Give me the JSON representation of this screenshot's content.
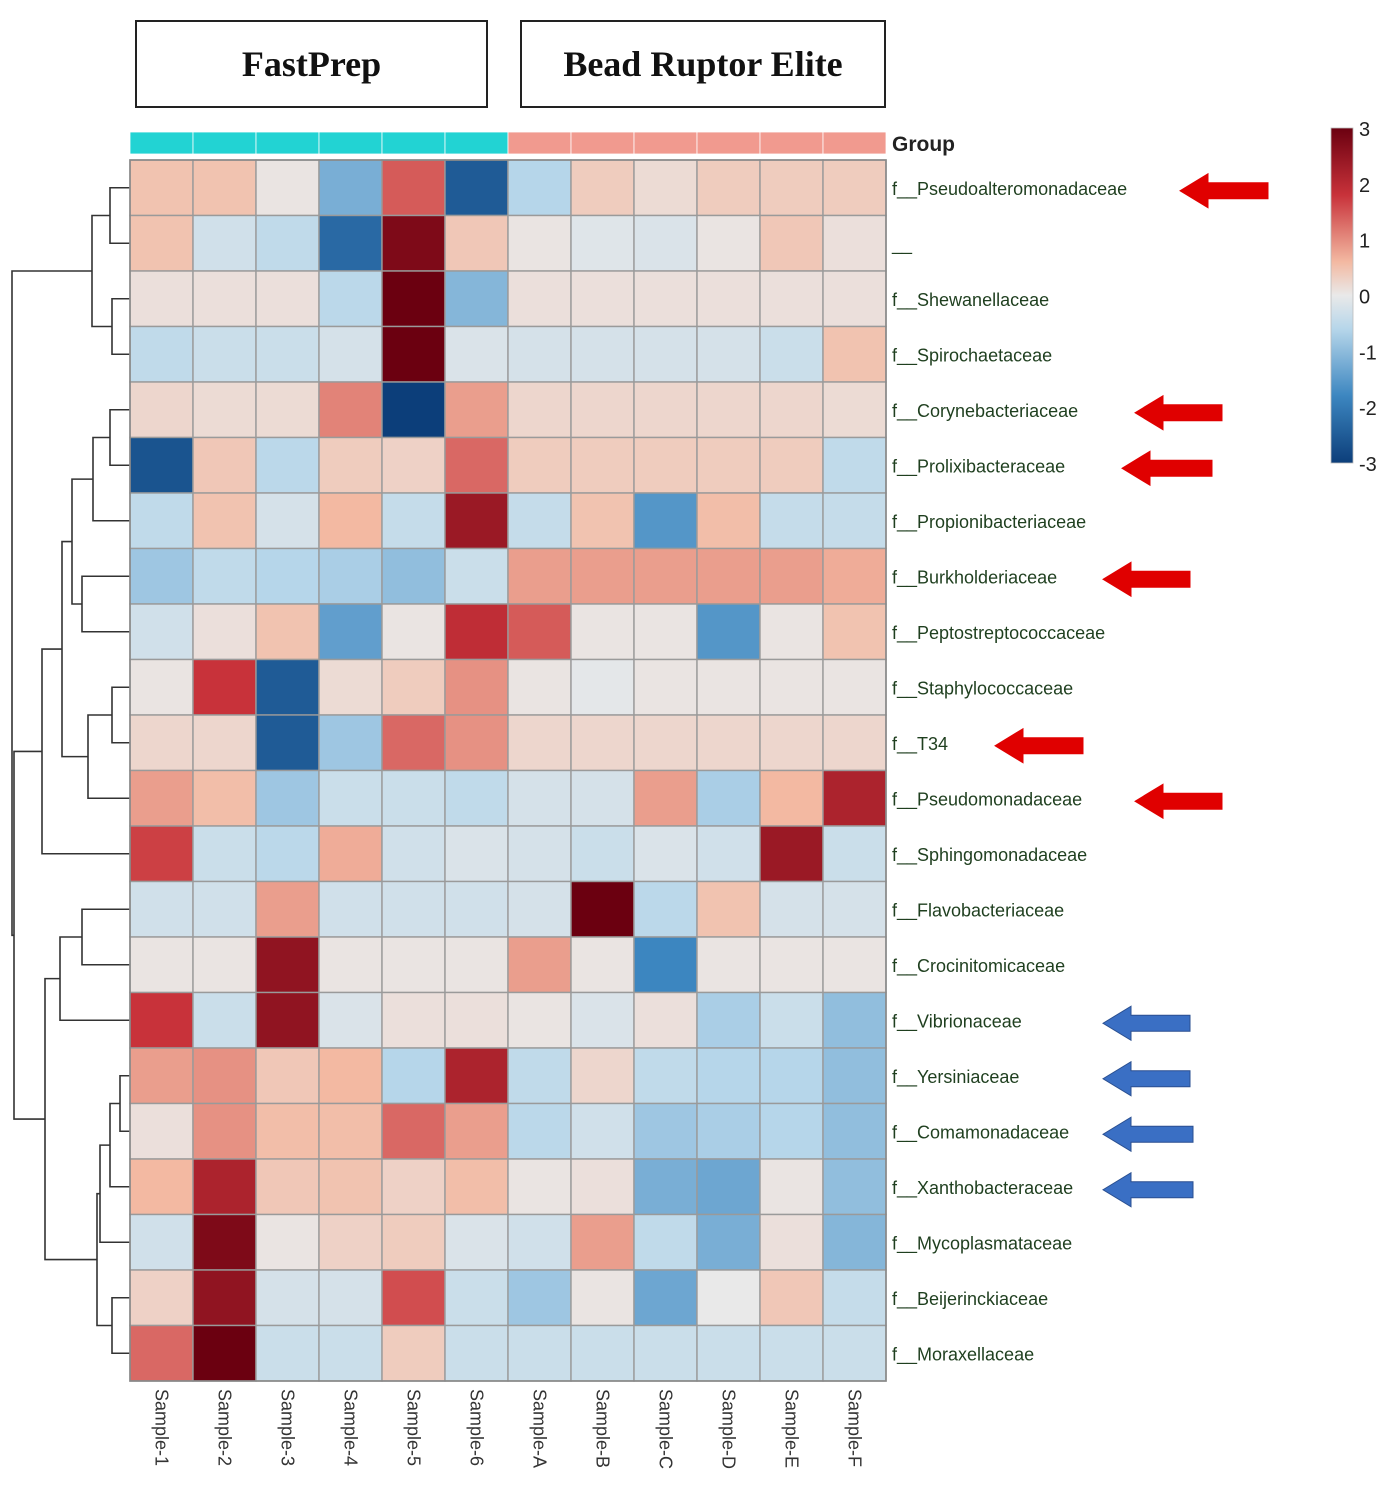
{
  "header_boxes": [
    "FastPrep",
    "Bead Ruptor Elite"
  ],
  "chart_data": {
    "type": "heatmap",
    "group_label": "Group",
    "groups": [
      {
        "name": "FastPrep",
        "color": "#22d3d3",
        "samples": [
          "Sample-1",
          "Sample-2",
          "Sample-3",
          "Sample-4",
          "Sample-5",
          "Sample-6"
        ]
      },
      {
        "name": "Bead Ruptor Elite",
        "color": "#f19a8f",
        "samples": [
          "Sample-A",
          "Sample-B",
          "Sample-C",
          "Sample-D",
          "Sample-E",
          "Sample-F"
        ]
      }
    ],
    "columns": [
      "Sample-1",
      "Sample-2",
      "Sample-3",
      "Sample-4",
      "Sample-5",
      "Sample-6",
      "Sample-A",
      "Sample-B",
      "Sample-C",
      "Sample-D",
      "Sample-E",
      "Sample-F"
    ],
    "rows": [
      "f__Pseudoalteromonadaceae",
      "__",
      "f__Shewanellaceae",
      "f__Spirochaetaceae",
      "f__Corynebacteriaceae",
      "f__Prolixibacteraceae",
      "f__Propionibacteriaceae",
      "f__Burkholderiaceae",
      "f__Peptostreptococcaceae",
      "f__Staphylococcaceae",
      "f__T34",
      "f__Pseudomonadaceae",
      "f__Sphingomonadaceae",
      "f__Flavobacteriaceae",
      "f__Crocinitomicaceae",
      "f__Vibrionaceae",
      "f__Yersiniaceae",
      "f__Comamonadaceae",
      "f__Xanthobacteraceae",
      "f__Mycoplasmataceae",
      "f__Beijerinckiaceae",
      "f__Moraxellaceae"
    ],
    "values": [
      [
        0.8,
        0.8,
        0.1,
        -1.5,
        1.7,
        -2.6,
        -1.0,
        0.6,
        0.3,
        0.6,
        0.6,
        0.6
      ],
      [
        0.8,
        -0.5,
        -0.8,
        -2.4,
        2.8,
        0.7,
        0.1,
        -0.2,
        -0.3,
        0.1,
        0.7,
        0.2
      ],
      [
        0.2,
        0.2,
        0.2,
        -0.9,
        3.1,
        -1.4,
        0.2,
        0.2,
        0.2,
        0.2,
        0.2,
        0.2
      ],
      [
        -0.8,
        -0.6,
        -0.6,
        -0.4,
        3.2,
        -0.3,
        -0.4,
        -0.4,
        -0.4,
        -0.4,
        -0.6,
        0.8
      ],
      [
        0.4,
        0.3,
        0.3,
        1.4,
        -3.0,
        1.2,
        0.4,
        0.4,
        0.4,
        0.4,
        0.4,
        0.3
      ],
      [
        -2.7,
        0.7,
        -0.9,
        0.6,
        0.5,
        1.6,
        0.6,
        0.6,
        0.6,
        0.6,
        0.6,
        -0.8
      ],
      [
        -0.8,
        0.8,
        -0.4,
        1.0,
        -0.7,
        2.5,
        -0.7,
        0.8,
        -1.8,
        0.9,
        -0.7,
        -0.7
      ],
      [
        -1.2,
        -0.8,
        -1.0,
        -1.1,
        -1.3,
        -0.6,
        1.2,
        1.2,
        1.2,
        1.2,
        1.2,
        1.1
      ],
      [
        -0.5,
        0.2,
        0.8,
        -1.7,
        0.1,
        2.1,
        1.7,
        0.1,
        0.1,
        -1.8,
        0.1,
        0.8
      ],
      [
        0.1,
        2.0,
        -2.6,
        0.3,
        0.6,
        1.3,
        0.1,
        -0.1,
        0.1,
        0.1,
        0.1,
        0.1
      ],
      [
        0.4,
        0.4,
        -2.6,
        -1.2,
        1.6,
        1.3,
        0.4,
        0.4,
        0.4,
        0.4,
        0.4,
        0.4
      ],
      [
        1.2,
        0.9,
        -1.2,
        -0.6,
        -0.6,
        -0.8,
        -0.4,
        -0.4,
        1.2,
        -1.1,
        1.0,
        2.3
      ],
      [
        1.9,
        -0.6,
        -0.9,
        1.1,
        -0.5,
        -0.3,
        -0.4,
        -0.6,
        -0.3,
        -0.5,
        2.5,
        -0.6
      ],
      [
        -0.5,
        -0.5,
        1.2,
        -0.5,
        -0.5,
        -0.5,
        -0.4,
        3.2,
        -0.9,
        0.8,
        -0.4,
        -0.4
      ],
      [
        0.1,
        0.1,
        2.6,
        0.1,
        0.1,
        0.1,
        1.2,
        0.1,
        -2.0,
        0.1,
        0.1,
        0.1
      ],
      [
        2.0,
        -0.6,
        2.6,
        -0.3,
        0.2,
        0.2,
        0.1,
        -0.3,
        0.2,
        -1.1,
        -0.6,
        -1.3
      ],
      [
        1.2,
        1.3,
        0.7,
        1.0,
        -1.0,
        2.3,
        -0.8,
        0.4,
        -0.8,
        -1.0,
        -1.0,
        -1.3
      ],
      [
        0.2,
        1.3,
        0.9,
        0.9,
        1.6,
        1.2,
        -0.9,
        -0.5,
        -1.2,
        -1.1,
        -1.0,
        -1.3
      ],
      [
        1.0,
        2.3,
        0.7,
        0.8,
        0.5,
        0.9,
        0.1,
        0.2,
        -1.5,
        -1.6,
        0.1,
        -1.3
      ],
      [
        -0.5,
        2.8,
        0.1,
        0.5,
        0.6,
        -0.3,
        -0.5,
        1.2,
        -0.8,
        -1.5,
        0.2,
        -1.4
      ],
      [
        0.5,
        2.6,
        -0.4,
        -0.4,
        1.8,
        -0.6,
        -1.2,
        0.1,
        -1.6,
        0.0,
        0.7,
        -0.7
      ],
      [
        1.6,
        3.3,
        -0.6,
        -0.6,
        0.6,
        -0.6,
        -0.6,
        -0.6,
        -0.6,
        -0.6,
        -0.6,
        -0.6
      ]
    ],
    "color_scale": {
      "min": -3,
      "max": 3,
      "ticks": [
        3,
        2,
        1,
        0,
        -1,
        -2,
        -3
      ],
      "colors": [
        "#0c3e7a",
        "#e9e9e9",
        "#6b0010"
      ]
    },
    "arrows": [
      {
        "row": "f__Pseudoalteromonadaceae",
        "color": "#e00000"
      },
      {
        "row": "f__Corynebacteriaceae",
        "color": "#e00000"
      },
      {
        "row": "f__Prolixibacteraceae",
        "color": "#e00000"
      },
      {
        "row": "f__Burkholderiaceae",
        "color": "#e00000"
      },
      {
        "row": "f__T34",
        "color": "#e00000"
      },
      {
        "row": "f__Pseudomonadaceae",
        "color": "#e00000"
      },
      {
        "row": "f__Vibrionaceae",
        "color": "#3a6fc4"
      },
      {
        "row": "f__Yersiniaceae",
        "color": "#3a6fc4"
      },
      {
        "row": "f__Comamonadaceae",
        "color": "#3a6fc4"
      },
      {
        "row": "f__Xanthobacteraceae",
        "color": "#3a6fc4"
      }
    ]
  }
}
